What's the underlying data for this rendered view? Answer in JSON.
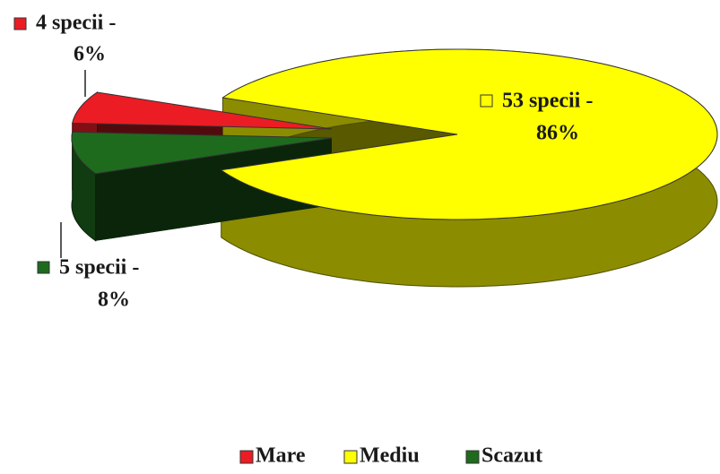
{
  "chart_data": {
    "type": "pie",
    "categories": [
      "Mare",
      "Mediu",
      "Scazut"
    ],
    "values": [
      6,
      86,
      8
    ],
    "value_labels": [
      [
        "4 specii -",
        "6%"
      ],
      [
        "53 specii -",
        "86%"
      ],
      [
        "5 specii -",
        "8%"
      ]
    ],
    "colors": [
      "#ec1c24",
      "#ffff00",
      "#1e6b1e"
    ],
    "legend": "bottom"
  }
}
